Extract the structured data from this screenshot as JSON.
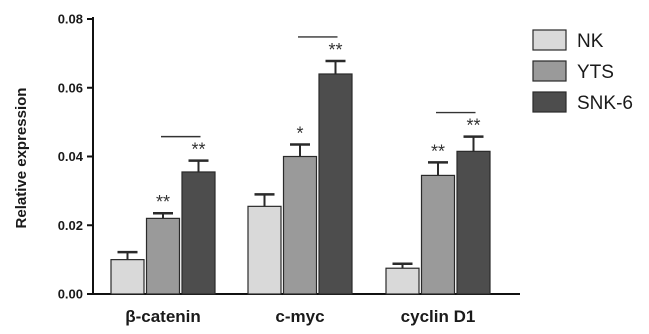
{
  "chart_data": {
    "type": "bar",
    "title": "",
    "xlabel": "",
    "ylabel": "Relative expression",
    "ylim": [
      0,
      0.08
    ],
    "yticks": [
      "0.00",
      "0.02",
      "0.04",
      "0.06",
      "0.08"
    ],
    "ytick_values": [
      0,
      0.02,
      0.04,
      0.06,
      0.08
    ],
    "categories": [
      "β-catenin",
      "c-myc",
      "cyclin D1"
    ],
    "series": [
      {
        "name": "NK",
        "color": "#d9d9d9",
        "values": [
          0.01,
          0.0255,
          0.0075
        ],
        "errors": [
          0.0022,
          0.0035,
          0.0013
        ],
        "labels": [
          "",
          "",
          ""
        ]
      },
      {
        "name": "YTS",
        "color": "#9a9a9a",
        "values": [
          0.022,
          0.04,
          0.0345
        ],
        "errors": [
          0.0015,
          0.0035,
          0.0038
        ],
        "labels": [
          "**",
          "*",
          "**"
        ]
      },
      {
        "name": "SNK-6",
        "color": "#4d4d4d",
        "values": [
          0.0355,
          0.064,
          0.0415
        ],
        "errors": [
          0.0033,
          0.0038,
          0.0043
        ],
        "labels": [
          "**",
          "**",
          "**"
        ]
      }
    ],
    "grid": false,
    "legend": "right"
  }
}
